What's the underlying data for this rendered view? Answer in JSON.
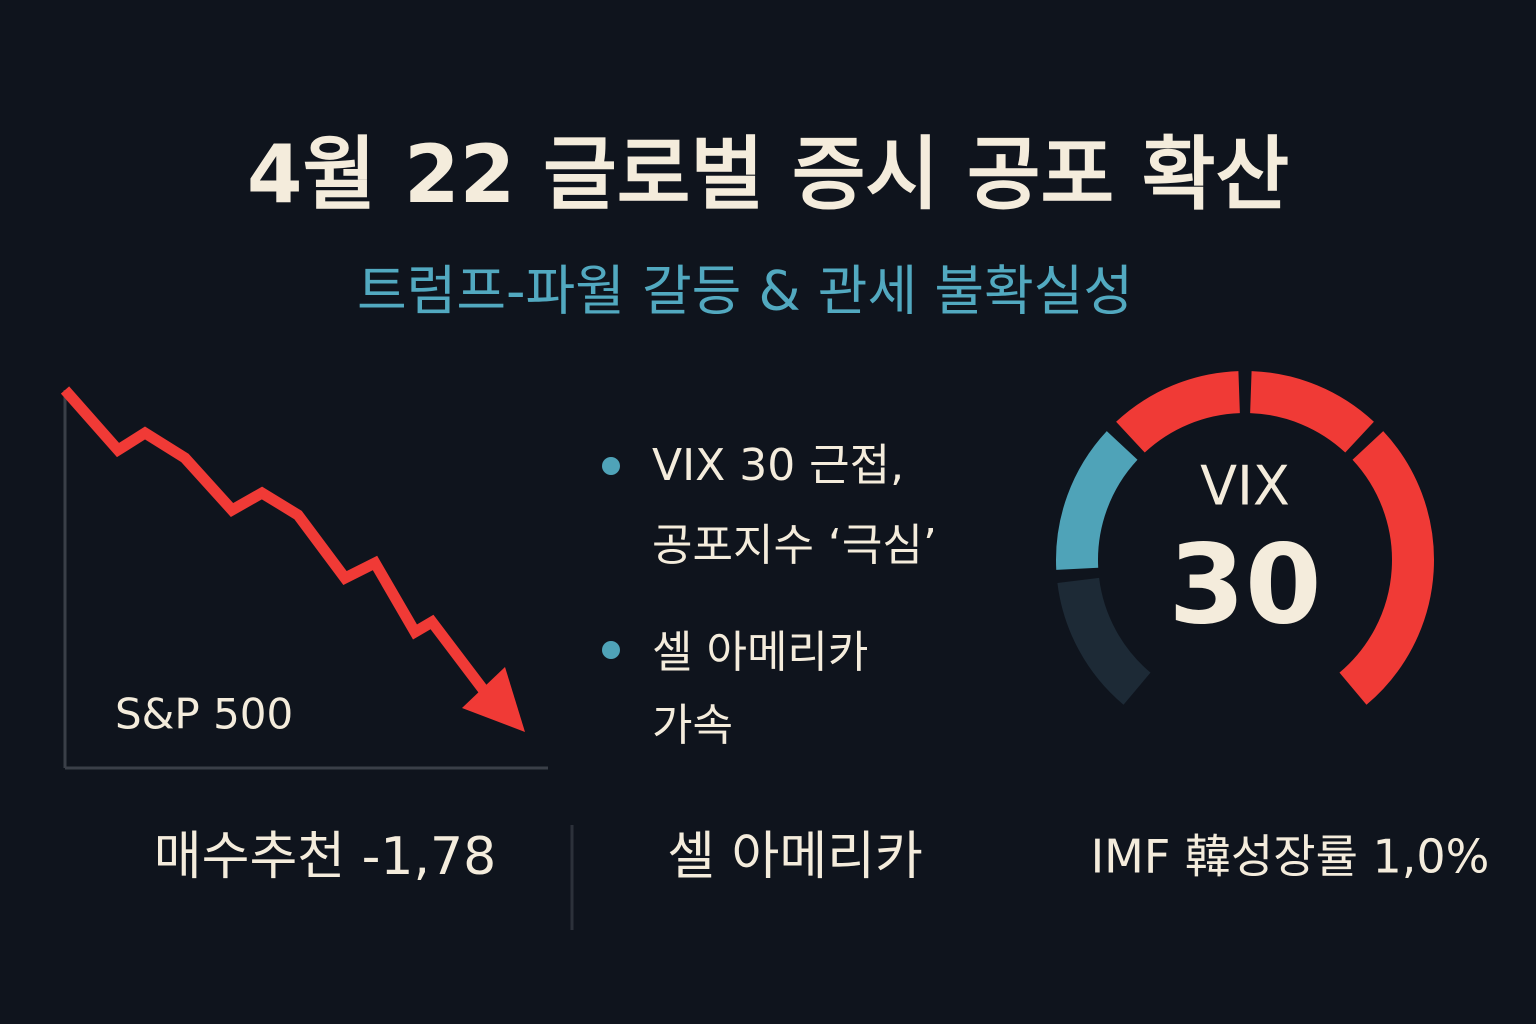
{
  "header": {
    "title": "4월 22 글로벌 증시 공포 확산",
    "subtitle": "트럼프-파월 갈등 & 관세 불확실성"
  },
  "chart": {
    "label": "S&P 500"
  },
  "bullets": [
    [
      "VIX 30 근접,",
      "공포지수 ‘극심’"
    ],
    [
      "셀 아메리카",
      "가속"
    ]
  ],
  "gauge": {
    "label": "VIX",
    "value": 30
  },
  "footer": [
    "매수추천 -1,78",
    "셀 아메리카",
    "IMF 韓성장률 1,0%"
  ]
}
